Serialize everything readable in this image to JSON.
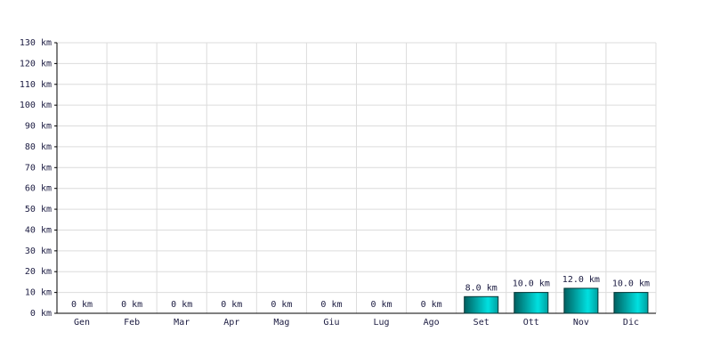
{
  "chart_data": {
    "type": "bar",
    "categories": [
      "Gen",
      "Feb",
      "Mar",
      "Apr",
      "Mag",
      "Giu",
      "Lug",
      "Ago",
      "Set",
      "Ott",
      "Nov",
      "Dic"
    ],
    "values": [
      0,
      0,
      0,
      0,
      0,
      0,
      0,
      0,
      8,
      10,
      12,
      10
    ],
    "value_labels": [
      "0 km",
      "0 km",
      "0 km",
      "0 km",
      "0 km",
      "0 km",
      "0 km",
      "0 km",
      "8.0 km",
      "10.0 km",
      "12.0 km",
      "10.0 km"
    ],
    "color": "#00e0e0",
    "ylim": [
      0,
      130
    ],
    "yticks": [
      {
        "value": 0,
        "label": "0 km"
      },
      {
        "value": 10,
        "label": "10 km"
      },
      {
        "value": 20,
        "label": "20 km"
      },
      {
        "value": 30,
        "label": "30 km"
      },
      {
        "value": 40,
        "label": "40 km"
      },
      {
        "value": 50,
        "label": "50 km"
      },
      {
        "value": 60,
        "label": "60 km"
      },
      {
        "value": 70,
        "label": "70 km"
      },
      {
        "value": 80,
        "label": "80 km"
      },
      {
        "value": 90,
        "label": "90 km"
      },
      {
        "value": 100,
        "label": "100 km"
      },
      {
        "value": 110,
        "label": "110 km"
      },
      {
        "value": 120,
        "label": "120 km"
      },
      {
        "value": 130,
        "label": "130 km"
      }
    ],
    "grid": true
  }
}
